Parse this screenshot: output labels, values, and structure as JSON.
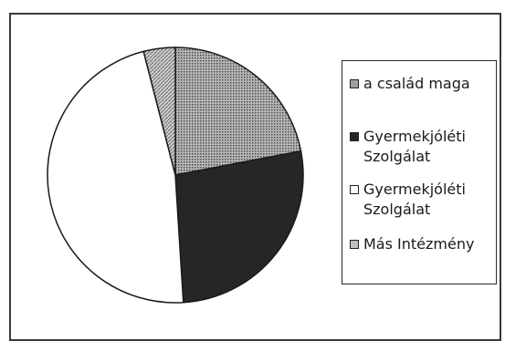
{
  "chart_data": {
    "type": "pie",
    "categories": [
      "a család maga",
      "Gyermekjóléti Szolgálat",
      "Gyermekjóléti Szolgálat",
      "Más Intézmény"
    ],
    "values": [
      22,
      27,
      47,
      4
    ],
    "colors": [
      "#9a9a9a",
      "#262626",
      "#ffffff",
      "#b4b4b4"
    ],
    "patterns": [
      "dotted",
      "solid",
      "solid",
      "hatched"
    ],
    "start_angle_deg": 0,
    "direction": "clockwise",
    "legend_position": "right"
  },
  "legend": {
    "items": [
      {
        "label": "a család maga"
      },
      {
        "label": "Gyermekjóléti Szolgálat"
      },
      {
        "label": "Gyermekjóléti Szolgálat"
      },
      {
        "label": "Más Intézmény"
      }
    ]
  }
}
